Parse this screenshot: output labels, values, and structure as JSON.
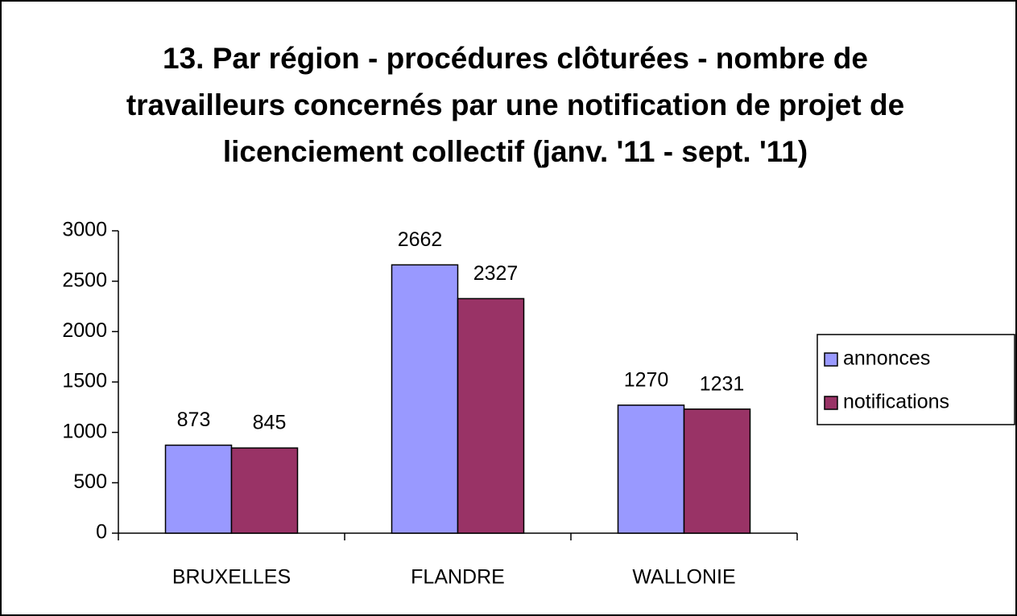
{
  "chart_data": {
    "type": "bar",
    "title": "13. Par région - procédures clôturées - nombre de travailleurs concernés par une notification de projet de licenciement collectif (janv. '11 - sept. '11)",
    "categories": [
      "BRUXELLES",
      "FLANDRE",
      "WALLONIE"
    ],
    "series": [
      {
        "name": "annonces",
        "color": "#9999ff",
        "values": [
          873,
          2662,
          1270
        ]
      },
      {
        "name": "notifications",
        "color": "#993366",
        "values": [
          845,
          2327,
          1231
        ]
      }
    ],
    "ylim": [
      0,
      3000
    ],
    "yticks": [
      0,
      500,
      1000,
      1500,
      2000,
      2500,
      3000
    ],
    "legend": "right"
  }
}
